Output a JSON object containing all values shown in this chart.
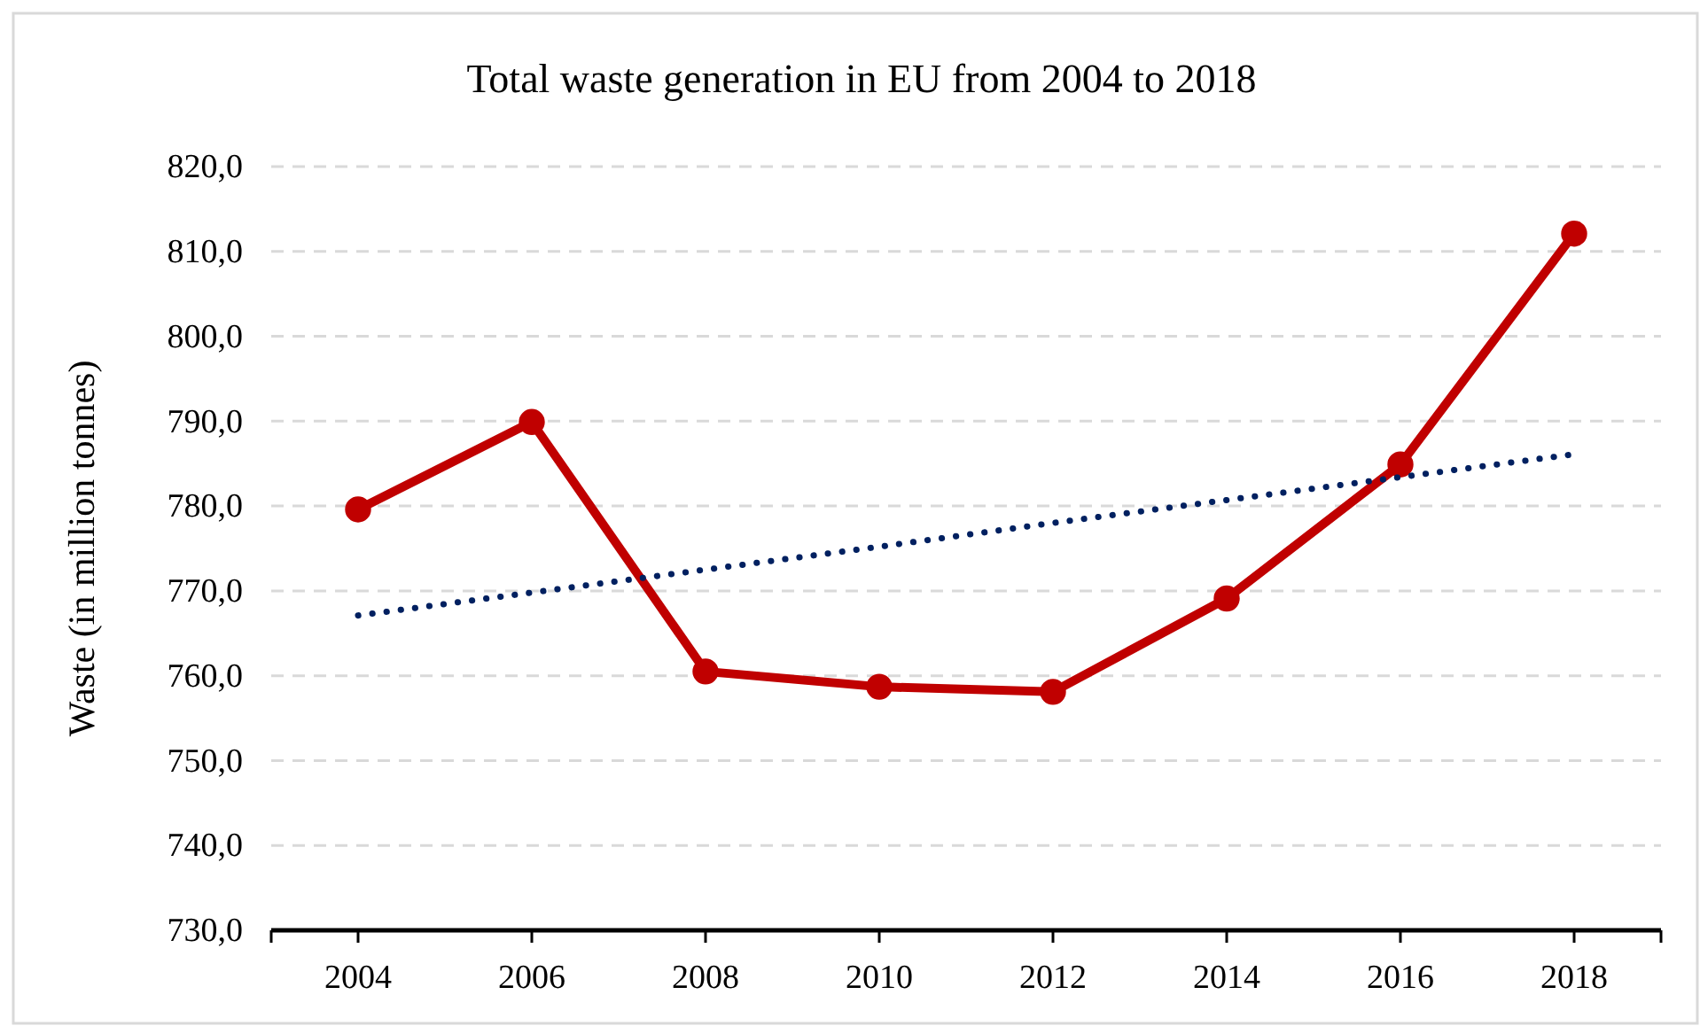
{
  "chart_data": {
    "type": "line",
    "title": "Total waste generation in EU from 2004 to 2018",
    "ylabel": "Waste (in million tonnes)",
    "categories": [
      "2004",
      "2006",
      "2008",
      "2010",
      "2012",
      "2014",
      "2016",
      "2018"
    ],
    "series": [
      {
        "color": "#c00000",
        "values": [
          779.6,
          789.9,
          760.5,
          758.7,
          758.1,
          769.1,
          784.9,
          812.1
        ],
        "marker": "circle",
        "line_style": "solid"
      },
      {
        "type": "line",
        "color": "#002060",
        "values": [
          767.1,
          769.8,
          772.5,
          775.2,
          778.0,
          780.7,
          783.4,
          786.1
        ],
        "marker": "none",
        "line_style": "dotted"
      }
    ],
    "ylim": [
      730,
      820
    ],
    "yticks": [
      {
        "value": 730,
        "label": "730,0"
      },
      {
        "value": 740,
        "label": "740,0"
      },
      {
        "value": 750,
        "label": "750,0"
      },
      {
        "value": 760,
        "label": "760,0"
      },
      {
        "value": 770,
        "label": "770,0"
      },
      {
        "value": 780,
        "label": "780,0"
      },
      {
        "value": 790,
        "label": "790,0"
      },
      {
        "value": 800,
        "label": "800,0"
      },
      {
        "value": 810,
        "label": "810,0"
      },
      {
        "value": 820,
        "label": "820,0"
      }
    ],
    "grid": "y"
  }
}
